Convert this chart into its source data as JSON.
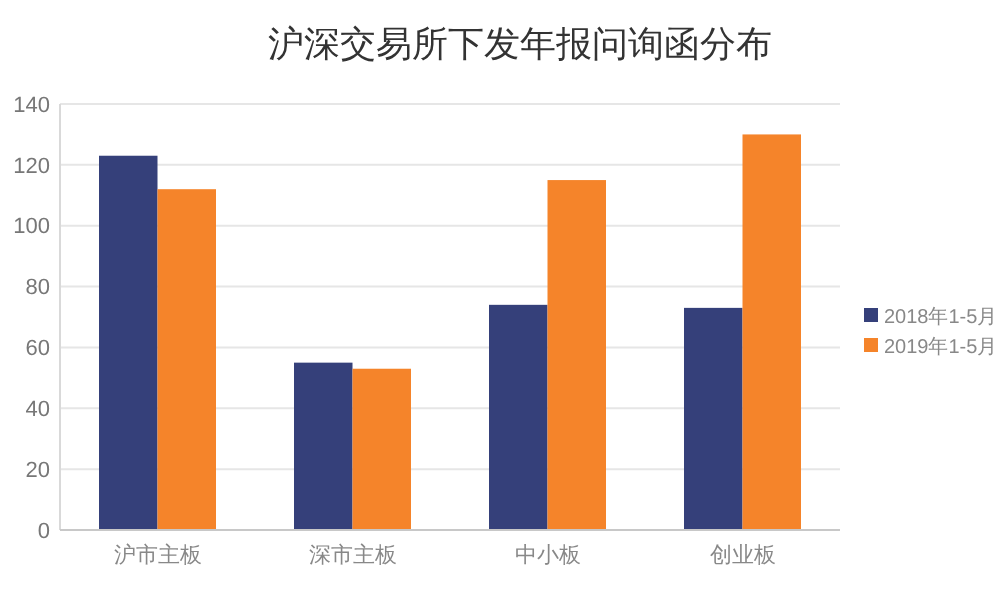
{
  "chart_data": {
    "type": "bar",
    "title": "沪深交易所下发年报问询函分布",
    "categories": [
      "沪市主板",
      "深市主板",
      "中小板",
      "创业板"
    ],
    "series": [
      {
        "name": "2018年1-5月",
        "color": "#35407a",
        "values": [
          123,
          55,
          74,
          73
        ]
      },
      {
        "name": "2019年1-5月",
        "color": "#f5842a",
        "values": [
          112,
          53,
          115,
          130
        ]
      }
    ],
    "ylim": [
      0,
      140
    ],
    "yticks": [
      0,
      20,
      40,
      60,
      80,
      100,
      120,
      140
    ],
    "grid": "y",
    "legend": "right"
  }
}
